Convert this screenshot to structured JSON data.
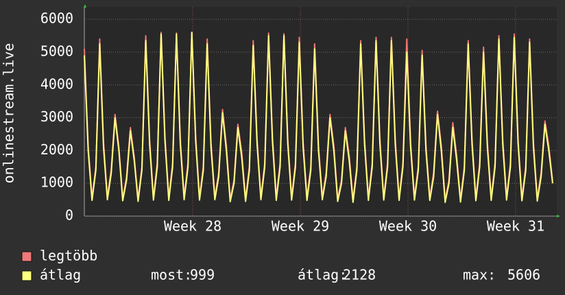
{
  "chart_data": {
    "type": "line",
    "ylabel": "onlinestream.live",
    "grid": true,
    "x": [
      0,
      0.25,
      0.5,
      0.75,
      1,
      1.25,
      1.5,
      1.75,
      2,
      2.25,
      2.5,
      2.75,
      3,
      3.25,
      3.5,
      3.75,
      4,
      4.25,
      4.5,
      4.75,
      5,
      5.25,
      5.5,
      5.75,
      6,
      6.25,
      6.5,
      6.75,
      7,
      7.25,
      7.5,
      7.75,
      8,
      8.25,
      8.5,
      8.75,
      9,
      9.25,
      9.5,
      9.75,
      10,
      10.25,
      10.5,
      10.75,
      11,
      11.25,
      11.5,
      11.75,
      12,
      12.25,
      12.5,
      12.75,
      13,
      13.25,
      13.5,
      13.75,
      14,
      14.25,
      14.5,
      14.75,
      15,
      15.25,
      15.5,
      15.75,
      16,
      16.25,
      16.5,
      16.75,
      17,
      17.25,
      17.5,
      17.75,
      18,
      18.25,
      18.5,
      18.75,
      19,
      19.25,
      19.5,
      19.75,
      20,
      20.25,
      20.5,
      20.75,
      21,
      21.25,
      21.5,
      21.75,
      22,
      22.25,
      22.5,
      22.75,
      23,
      23.25,
      23.5,
      23.75,
      24,
      24.25,
      24.5,
      24.75,
      25,
      25.25,
      25.5,
      25.75,
      26,
      26.25,
      26.5,
      26.75,
      27,
      27.25,
      27.5,
      27.75,
      28,
      28.25,
      28.5,
      28.75,
      29,
      29.25,
      29.5,
      29.75,
      30,
      30.25,
      30.5
    ],
    "xlim": [
      0,
      30.77
    ],
    "xticks": [
      {
        "value": 7.06,
        "label": "Week 28"
      },
      {
        "value": 14.07,
        "label": "Week 29"
      },
      {
        "value": 21.08,
        "label": "Week 30"
      },
      {
        "value": 28.09,
        "label": "Week 31"
      }
    ],
    "ylim": [
      0,
      6380
    ],
    "yticks": [
      0,
      1000,
      2000,
      3000,
      4000,
      5000,
      6000
    ],
    "series": [
      {
        "name": "legtöbb",
        "color": "#f07878",
        "values": [
          5100,
          2150,
          560,
          1500,
          5400,
          2250,
          580,
          1420,
          3100,
          2100,
          540,
          1200,
          2700,
          1800,
          520,
          1500,
          5500,
          2350,
          560,
          1620,
          5600,
          2450,
          560,
          1620,
          5580,
          2350,
          580,
          1620,
          5606,
          2450,
          570,
          1520,
          5400,
          2250,
          580,
          1320,
          3250,
          2150,
          520,
          1100,
          2800,
          1950,
          530,
          1520,
          5350,
          2350,
          580,
          1620,
          5580,
          2450,
          560,
          1620,
          5560,
          2350,
          570,
          1620,
          5450,
          2250,
          560,
          1520,
          5250,
          2150,
          580,
          1320,
          3100,
          2150,
          530,
          1100,
          2700,
          1850,
          500,
          1520,
          5350,
          2350,
          560,
          1620,
          5450,
          2350,
          570,
          1620,
          5450,
          2350,
          560,
          1620,
          5400,
          2250,
          570,
          1520,
          5050,
          2150,
          560,
          1320,
          3200,
          2150,
          500,
          1100,
          2850,
          1850,
          510,
          1520,
          5350,
          2350,
          550,
          1620,
          5150,
          2250,
          560,
          1620,
          5500,
          2350,
          570,
          1620,
          5550,
          2350,
          550,
          1520,
          5400,
          2250,
          540,
          1320,
          2900,
          2150,
          1060
        ]
      },
      {
        "name": "átlag",
        "color": "#ffff80",
        "values": [
          4900,
          2000,
          480,
          1400,
          5250,
          2100,
          500,
          1300,
          3000,
          2000,
          470,
          1100,
          2600,
          1700,
          450,
          1400,
          5350,
          2200,
          490,
          1500,
          5550,
          2300,
          480,
          1500,
          5550,
          2200,
          500,
          1500,
          5600,
          2300,
          490,
          1400,
          5250,
          2100,
          500,
          1200,
          3150,
          2000,
          440,
          1000,
          2700,
          1800,
          450,
          1400,
          5200,
          2200,
          500,
          1500,
          5500,
          2300,
          480,
          1500,
          5500,
          2200,
          490,
          1500,
          5300,
          2100,
          480,
          1400,
          5100,
          2000,
          500,
          1200,
          3000,
          2000,
          450,
          1000,
          2600,
          1700,
          420,
          1400,
          5250,
          2200,
          480,
          1500,
          5350,
          2200,
          490,
          1500,
          5350,
          2200,
          480,
          1500,
          5000,
          2100,
          490,
          1400,
          4900,
          2000,
          480,
          1200,
          3100,
          2000,
          420,
          1000,
          2700,
          1700,
          430,
          1400,
          5250,
          2200,
          470,
          1500,
          5000,
          2100,
          480,
          1500,
          5400,
          2200,
          490,
          1500,
          5450,
          2200,
          470,
          1400,
          5300,
          2100,
          460,
          1200,
          2800,
          2000,
          999
        ]
      }
    ],
    "stats": [
      {
        "label": "most:",
        "value": 999
      },
      {
        "label": "átlag:",
        "value": 2128
      },
      {
        "label": "max:",
        "value": 5606
      }
    ]
  }
}
